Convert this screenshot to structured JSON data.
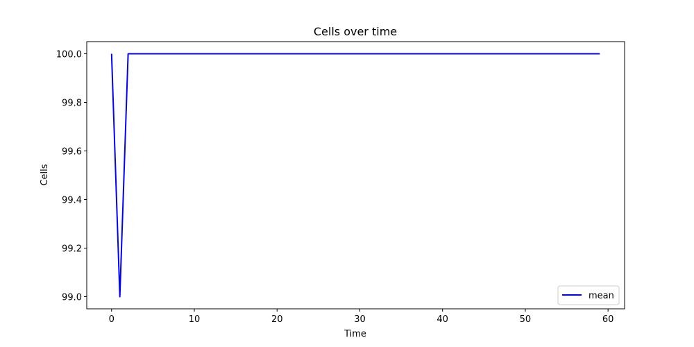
{
  "chart_data": {
    "type": "line",
    "title": "Cells over time",
    "xlabel": "Time",
    "ylabel": "Cells",
    "xlim": [
      -3,
      62
    ],
    "ylim": [
      98.95,
      100.05
    ],
    "xticks": [
      0,
      10,
      20,
      30,
      40,
      50,
      60
    ],
    "yticks": [
      99.0,
      99.2,
      99.4,
      99.6,
      99.8,
      100.0
    ],
    "ytick_labels": [
      "99.0",
      "99.2",
      "99.4",
      "99.6",
      "99.8",
      "100.0"
    ],
    "xtick_labels": [
      "0",
      "10",
      "20",
      "30",
      "40",
      "50",
      "60"
    ],
    "grid": false,
    "legend_position": "lower-right",
    "series": [
      {
        "name": "mean",
        "color": "#0000ff",
        "x": [
          0,
          1,
          2,
          3,
          4,
          5,
          6,
          7,
          8,
          9,
          10,
          11,
          12,
          13,
          14,
          15,
          16,
          17,
          18,
          19,
          20,
          21,
          22,
          23,
          24,
          25,
          26,
          27,
          28,
          29,
          30,
          31,
          32,
          33,
          34,
          35,
          36,
          37,
          38,
          39,
          40,
          41,
          42,
          43,
          44,
          45,
          46,
          47,
          48,
          49,
          50,
          51,
          52,
          53,
          54,
          55,
          56,
          57,
          58,
          59
        ],
        "values": [
          100,
          99,
          100,
          100,
          100,
          100,
          100,
          100,
          100,
          100,
          100,
          100,
          100,
          100,
          100,
          100,
          100,
          100,
          100,
          100,
          100,
          100,
          100,
          100,
          100,
          100,
          100,
          100,
          100,
          100,
          100,
          100,
          100,
          100,
          100,
          100,
          100,
          100,
          100,
          100,
          100,
          100,
          100,
          100,
          100,
          100,
          100,
          100,
          100,
          100,
          100,
          100,
          100,
          100,
          100,
          100,
          100,
          100,
          100,
          100
        ]
      }
    ]
  }
}
